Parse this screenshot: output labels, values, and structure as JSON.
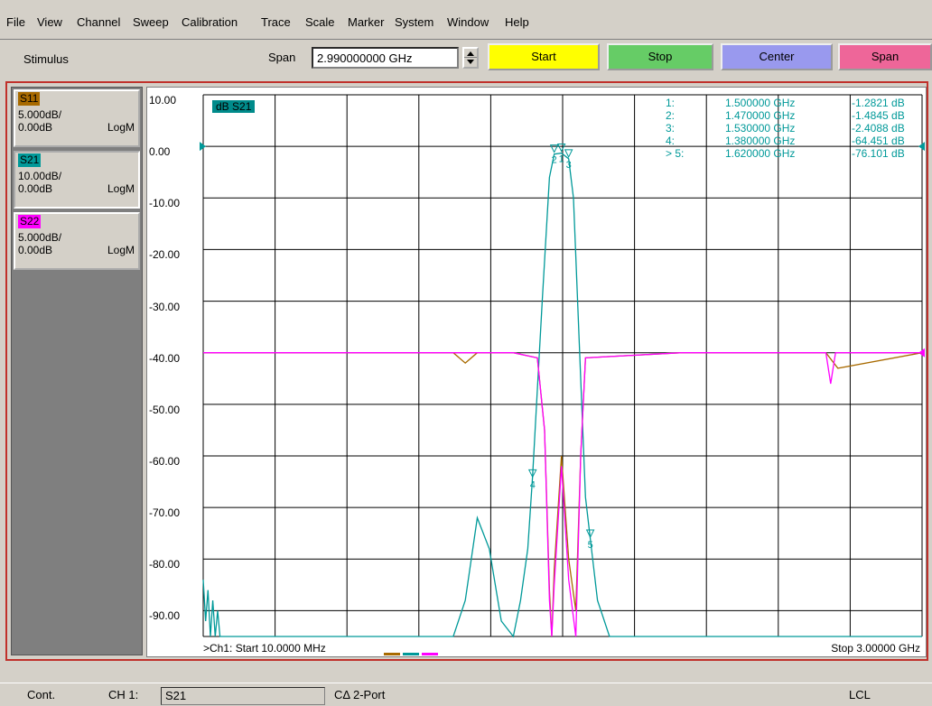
{
  "menu": [
    "File",
    "View",
    "Channel",
    "Sweep",
    "Calibration",
    "Trace",
    "Scale",
    "Marker",
    "System",
    "Window",
    "Help"
  ],
  "stimulus": {
    "label": "Stimulus",
    "span_label": "Span",
    "span_value": "2.990000000 GHz",
    "buttons": [
      {
        "label": "Start",
        "color": "#ffff00"
      },
      {
        "label": "Stop",
        "color": "#66cc66"
      },
      {
        "label": "Center",
        "color": "#9999ee"
      },
      {
        "label": "Span",
        "color": "#ee6699"
      }
    ]
  },
  "traces": [
    {
      "name": "S11",
      "scale": "5.000dB/",
      "ref": "0.00dB",
      "format": "LogM",
      "color": "#a86a00"
    },
    {
      "name": "S21",
      "scale": "10.00dB/",
      "ref": "0.00dB",
      "format": "LogM",
      "color": "#009999",
      "active": true
    },
    {
      "name": "S22",
      "scale": "5.000dB/",
      "ref": "0.00dB",
      "format": "LogM",
      "color": "#ff00ff"
    }
  ],
  "plot": {
    "title": "dB S21",
    "y_ticks": [
      "10.00",
      "0.00",
      "-10.00",
      "-20.00",
      "-30.00",
      "-40.00",
      "-50.00",
      "-60.00",
      "-70.00",
      "-80.00",
      "-90.00"
    ],
    "footer_start": ">Ch1: Start  10.0000 MHz",
    "footer_stop": "Stop  3.00000 GHz"
  },
  "markers": [
    {
      "id": "1:",
      "freq": "1.500000 GHz",
      "value": "-1.2821 dB"
    },
    {
      "id": "2:",
      "freq": "1.470000 GHz",
      "value": "-1.4845 dB"
    },
    {
      "id": "3:",
      "freq": "1.530000 GHz",
      "value": "-2.4088 dB"
    },
    {
      "id": "4:",
      "freq": "1.380000 GHz",
      "value": "-64.451 dB"
    },
    {
      "id": "> 5:",
      "freq": "1.620000 GHz",
      "value": "-76.101 dB"
    }
  ],
  "chart_data": {
    "type": "line",
    "title": "dB S21",
    "xlim": [
      0.01,
      3.0
    ],
    "ylim": [
      -95,
      10
    ],
    "x_unit": "GHz",
    "y_unit": "dB",
    "series": [
      {
        "name": "S21",
        "color": "#009999",
        "x": [
          0.01,
          0.02,
          0.03,
          0.04,
          0.05,
          0.06,
          0.07,
          0.08,
          1.0,
          1.05,
          1.1,
          1.15,
          1.2,
          1.25,
          1.3,
          1.33,
          1.36,
          1.38,
          1.42,
          1.45,
          1.47,
          1.5,
          1.53,
          1.55,
          1.58,
          1.6,
          1.62,
          1.65,
          1.7,
          1.75,
          3.0
        ],
        "y": [
          -84,
          -92,
          -86,
          -95,
          -88,
          -95,
          -90,
          -95,
          -95,
          -95,
          -88,
          -72,
          -78,
          -92,
          -95,
          -88,
          -78,
          -64,
          -30,
          -6,
          -1.5,
          -1.3,
          -2.4,
          -10,
          -45,
          -68,
          -76,
          -88,
          -95,
          -95,
          -95
        ]
      },
      {
        "name": "S11",
        "color": "#a86a00",
        "x": [
          0.01,
          1.05,
          1.1,
          1.15,
          1.3,
          1.4,
          1.43,
          1.45,
          1.46,
          1.47,
          1.5,
          1.53,
          1.56,
          1.58,
          1.6,
          2.0,
          2.6,
          2.65,
          3.0
        ],
        "y": [
          -40,
          -40,
          -42,
          -40,
          -40,
          -41,
          -55,
          -86,
          -95,
          -82,
          -60,
          -80,
          -90,
          -60,
          -41,
          -40,
          -40,
          -43,
          -40
        ]
      },
      {
        "name": "S22",
        "color": "#ff00ff",
        "x": [
          0.01,
          1.3,
          1.4,
          1.43,
          1.45,
          1.46,
          1.47,
          1.5,
          1.53,
          1.56,
          1.58,
          1.6,
          2.0,
          2.6,
          2.62,
          2.64,
          3.0
        ],
        "y": [
          -40,
          -40,
          -41,
          -55,
          -88,
          -95,
          -85,
          -62,
          -84,
          -95,
          -60,
          -41,
          -40,
          -40,
          -46,
          -40,
          -40
        ]
      }
    ],
    "markers": [
      {
        "id": "1",
        "x": 1.5,
        "y": -1.2821
      },
      {
        "id": "2",
        "x": 1.47,
        "y": -1.4845
      },
      {
        "id": "3",
        "x": 1.53,
        "y": -2.4088
      },
      {
        "id": "4",
        "x": 1.38,
        "y": -64.451
      },
      {
        "id": "5",
        "x": 1.62,
        "y": -76.101
      }
    ],
    "grid": true
  },
  "status": {
    "mode": "Cont.",
    "channel": "CH 1:",
    "trace": "S21",
    "cal": "CΔ 2-Port",
    "lcl": "LCL"
  }
}
